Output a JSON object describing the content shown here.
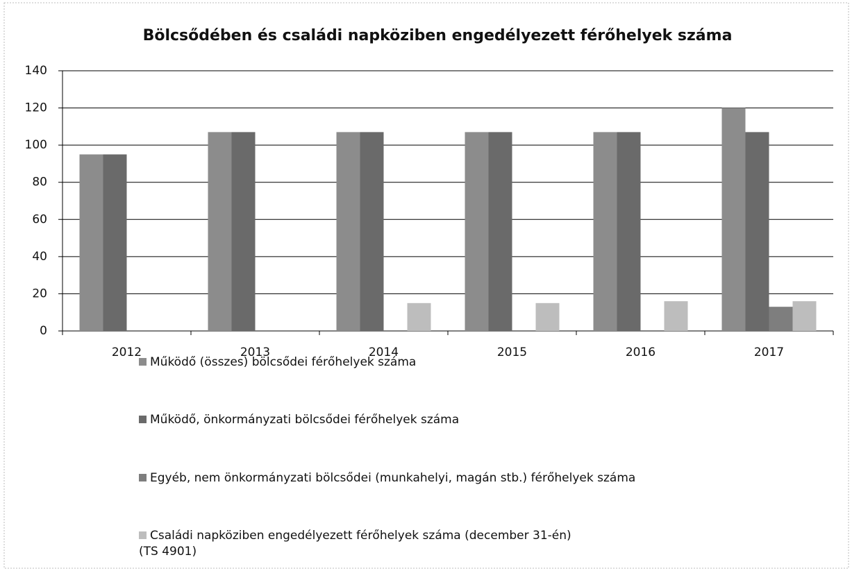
{
  "chart_data": {
    "type": "bar",
    "title": "Bölcsődében és családi napköziben engedélyezett férőhelyek száma",
    "categories": [
      "2012",
      "2013",
      "2014",
      "2015",
      "2016",
      "2017"
    ],
    "series": [
      {
        "name": "Működő (összes) bölcsődei férőhelyek száma",
        "color": "#8c8c8c",
        "values": [
          95,
          107,
          107,
          107,
          107,
          120
        ]
      },
      {
        "name": "Működő, önkormányzati bölcsődei férőhelyek száma",
        "color": "#6a6a6a",
        "values": [
          95,
          107,
          107,
          107,
          107,
          107
        ]
      },
      {
        "name": "Egyéb, nem önkormányzati bölcsődei (munkahelyi, magán stb.) férőhelyek száma",
        "color": "#7e7e7e",
        "values": [
          0,
          0,
          0,
          0,
          0,
          13
        ]
      },
      {
        "name": "Családi napköziben engedélyezett férőhelyek száma (december 31-én)\n(TS 4901)",
        "color": "#bdbdbd",
        "values": [
          0,
          0,
          15,
          15,
          16,
          16
        ]
      }
    ],
    "ylim": [
      0,
      140
    ],
    "yticks": [
      0,
      20,
      40,
      60,
      80,
      100,
      120,
      140
    ],
    "grid": true
  }
}
